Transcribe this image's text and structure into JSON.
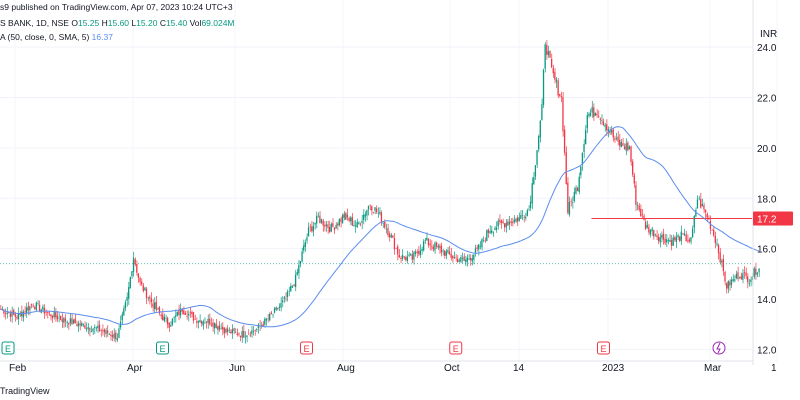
{
  "header": {
    "publish_line": "s9 published on TradingView.com, Apr 07, 2023 10:24 UTC+3",
    "symbol_line_prefix": "S BANK, 1D, NSE",
    "o_label": "O",
    "o_value": "15.25",
    "h_label": "H",
    "h_value": "15.60",
    "l_label": "L",
    "l_value": "15.20",
    "c_label": "C",
    "c_value": "15.40",
    "vol_label": "Vol",
    "vol_value": "69.024M",
    "sma_label": "A (50, close, 0, SMA, 5)",
    "sma_value": "16.37"
  },
  "footer": {
    "brand": "TradingView"
  },
  "currency": "INR",
  "price_label": "17.2",
  "colors": {
    "up": "#089981",
    "down": "#f23645",
    "sma": "#5b8def",
    "level": "#f23645",
    "dotted": "#26a69a",
    "event_e_up": "#089981",
    "event_e_down": "#f23645",
    "event_flash": "#9c27b0"
  },
  "chart_data": {
    "type": "candlestick",
    "ylim": [
      11.5,
      25.0
    ],
    "y_ticks": [
      12.0,
      14.0,
      16.0,
      18.0,
      20.0,
      22.0,
      24.0
    ],
    "y_tick_labels": [
      "12.0",
      "14.0",
      "16.0",
      "18.0",
      "20.0",
      "22.0",
      "24.0"
    ],
    "x_labels": [
      "Feb",
      "Apr",
      "Jun",
      "Aug",
      "Oct",
      "14",
      "2023",
      "Mar",
      "1"
    ],
    "close_path": [
      [
        0,
        13.6
      ],
      [
        10,
        13.3
      ],
      [
        20,
        13.8
      ],
      [
        30,
        13.4
      ],
      [
        38,
        13.2
      ],
      [
        48,
        13.0
      ],
      [
        60,
        12.8
      ],
      [
        72,
        12.5
      ],
      [
        78,
        14.0
      ],
      [
        82,
        15.7
      ],
      [
        86,
        14.6
      ],
      [
        92,
        14.0
      ],
      [
        98,
        13.4
      ],
      [
        104,
        13.0
      ],
      [
        112,
        13.6
      ],
      [
        120,
        13.2
      ],
      [
        130,
        13.1
      ],
      [
        140,
        12.7
      ],
      [
        150,
        12.6
      ],
      [
        158,
        12.8
      ],
      [
        168,
        13.4
      ],
      [
        176,
        14.0
      ],
      [
        182,
        14.8
      ],
      [
        186,
        15.8
      ],
      [
        190,
        16.7
      ],
      [
        196,
        17.2
      ],
      [
        204,
        16.8
      ],
      [
        212,
        17.3
      ],
      [
        220,
        16.9
      ],
      [
        228,
        17.8
      ],
      [
        234,
        17.3
      ],
      [
        240,
        16.6
      ],
      [
        246,
        15.7
      ],
      [
        254,
        15.6
      ],
      [
        262,
        16.3
      ],
      [
        270,
        16.0
      ],
      [
        278,
        15.7
      ],
      [
        286,
        15.5
      ],
      [
        294,
        15.9
      ],
      [
        302,
        16.8
      ],
      [
        310,
        17.0
      ],
      [
        320,
        17.2
      ],
      [
        326,
        17.6
      ],
      [
        330,
        19.5
      ],
      [
        334,
        21.5
      ],
      [
        336,
        24.3
      ],
      [
        340,
        23.0
      ],
      [
        346,
        22.0
      ],
      [
        350,
        17.5
      ],
      [
        356,
        18.5
      ],
      [
        362,
        21.3
      ],
      [
        368,
        21.5
      ],
      [
        374,
        20.9
      ],
      [
        380,
        20.2
      ],
      [
        388,
        20.0
      ],
      [
        392,
        17.9
      ],
      [
        398,
        16.9
      ],
      [
        406,
        16.5
      ],
      [
        414,
        16.3
      ],
      [
        420,
        16.5
      ],
      [
        426,
        16.3
      ],
      [
        430,
        18.0
      ],
      [
        436,
        17.3
      ],
      [
        442,
        16.2
      ],
      [
        448,
        14.5
      ],
      [
        456,
        15.0
      ],
      [
        462,
        14.8
      ],
      [
        468,
        15.3
      ]
    ],
    "sma_period": 50,
    "level_price": 17.2,
    "dotted_level": 15.4
  },
  "events": [
    {
      "type": "E",
      "pos": 0.0,
      "tone": "up"
    },
    {
      "type": "E",
      "pos": 0.206,
      "tone": "up"
    },
    {
      "type": "E",
      "pos": 0.398,
      "tone": "down"
    },
    {
      "type": "E",
      "pos": 0.597,
      "tone": "down"
    },
    {
      "type": "E",
      "pos": 0.794,
      "tone": "down"
    },
    {
      "type": "flash",
      "pos": 0.948,
      "tone": "flash"
    }
  ]
}
